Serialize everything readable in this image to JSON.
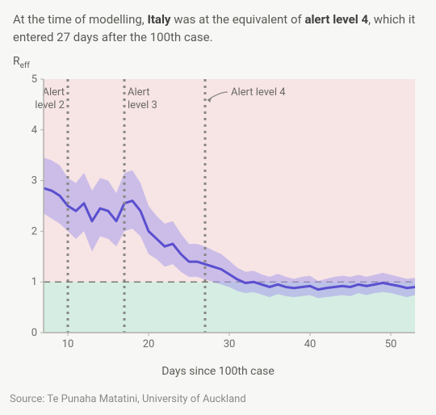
{
  "title": {
    "prefix": "At the time of modelling, ",
    "bold1": "Italy",
    "mid": " was at the equivalent of ",
    "bold2": "alert level 4",
    "suffix": ", which it entered 27 days after the 100th case."
  },
  "ylabel_main": "R",
  "ylabel_sub": "eff",
  "xlabel": "Days since 100th case",
  "source": "Source: Te Punaha Matatini, University of Auckland",
  "chart": {
    "type": "line",
    "xlim": [
      7,
      53
    ],
    "ylim": [
      0,
      5
    ],
    "yticks": [
      0,
      1,
      2,
      3,
      4,
      5
    ],
    "xticks": [
      10,
      20,
      30,
      40,
      50
    ],
    "background_upper_color": "#f7e4e4",
    "background_lower_color": "#d5ede3",
    "threshold_y": 1,
    "threshold_dash": "8,6",
    "threshold_color": "#7a7a76",
    "plot_border_color": "#b0b0aa",
    "line_color": "#5a4fcf",
    "line_width": 3,
    "band_color": "#a79ceb",
    "band_opacity": 0.55,
    "vline_color": "#888884",
    "vline_dash": "3,5",
    "vline_width": 3,
    "annotations": [
      {
        "x": 10,
        "label_top": "Alert",
        "label_bot": "level 2",
        "label_x_offset": -4
      },
      {
        "x": 17,
        "label_top": "Alert",
        "label_bot": "level 3",
        "label_x_offset": 4
      },
      {
        "x": 27,
        "label_top": "Alert level 4",
        "label_bot": "",
        "label_x_offset": 14,
        "arrow": true
      }
    ],
    "series_x": [
      7,
      8,
      9,
      10,
      11,
      12,
      13,
      14,
      15,
      16,
      17,
      18,
      19,
      20,
      21,
      22,
      23,
      24,
      25,
      26,
      27,
      28,
      29,
      30,
      31,
      32,
      33,
      34,
      35,
      36,
      37,
      38,
      39,
      40,
      41,
      42,
      43,
      44,
      45,
      46,
      47,
      48,
      49,
      50,
      51,
      52,
      53
    ],
    "series_mean": [
      2.85,
      2.8,
      2.7,
      2.5,
      2.4,
      2.55,
      2.2,
      2.45,
      2.4,
      2.2,
      2.55,
      2.6,
      2.4,
      2.0,
      1.85,
      1.7,
      1.75,
      1.55,
      1.4,
      1.4,
      1.35,
      1.3,
      1.25,
      1.15,
      1.05,
      0.98,
      1.0,
      0.95,
      0.9,
      0.95,
      0.9,
      0.88,
      0.9,
      0.92,
      0.85,
      0.88,
      0.9,
      0.92,
      0.9,
      0.95,
      0.92,
      0.95,
      0.98,
      0.95,
      0.92,
      0.88,
      0.9
    ],
    "series_lo": [
      2.35,
      2.25,
      2.15,
      2.0,
      1.85,
      2.0,
      1.6,
      1.9,
      1.85,
      1.7,
      2.0,
      2.05,
      1.9,
      1.55,
      1.45,
      1.3,
      1.35,
      1.2,
      1.1,
      1.1,
      1.05,
      1.0,
      0.95,
      0.9,
      0.82,
      0.78,
      0.8,
      0.75,
      0.7,
      0.76,
      0.72,
      0.7,
      0.72,
      0.74,
      0.68,
      0.7,
      0.72,
      0.74,
      0.72,
      0.78,
      0.74,
      0.78,
      0.8,
      0.78,
      0.74,
      0.7,
      0.74
    ],
    "series_hi": [
      3.45,
      3.4,
      3.3,
      3.05,
      2.95,
      3.15,
      2.8,
      3.05,
      3.0,
      2.75,
      3.15,
      3.2,
      2.95,
      2.5,
      2.3,
      2.15,
      2.2,
      1.95,
      1.75,
      1.75,
      1.7,
      1.62,
      1.55,
      1.42,
      1.28,
      1.2,
      1.22,
      1.15,
      1.1,
      1.16,
      1.1,
      1.06,
      1.1,
      1.12,
      1.02,
      1.06,
      1.1,
      1.12,
      1.1,
      1.14,
      1.1,
      1.14,
      1.18,
      1.14,
      1.1,
      1.06,
      1.08
    ]
  },
  "axis_fontsize": 13
}
